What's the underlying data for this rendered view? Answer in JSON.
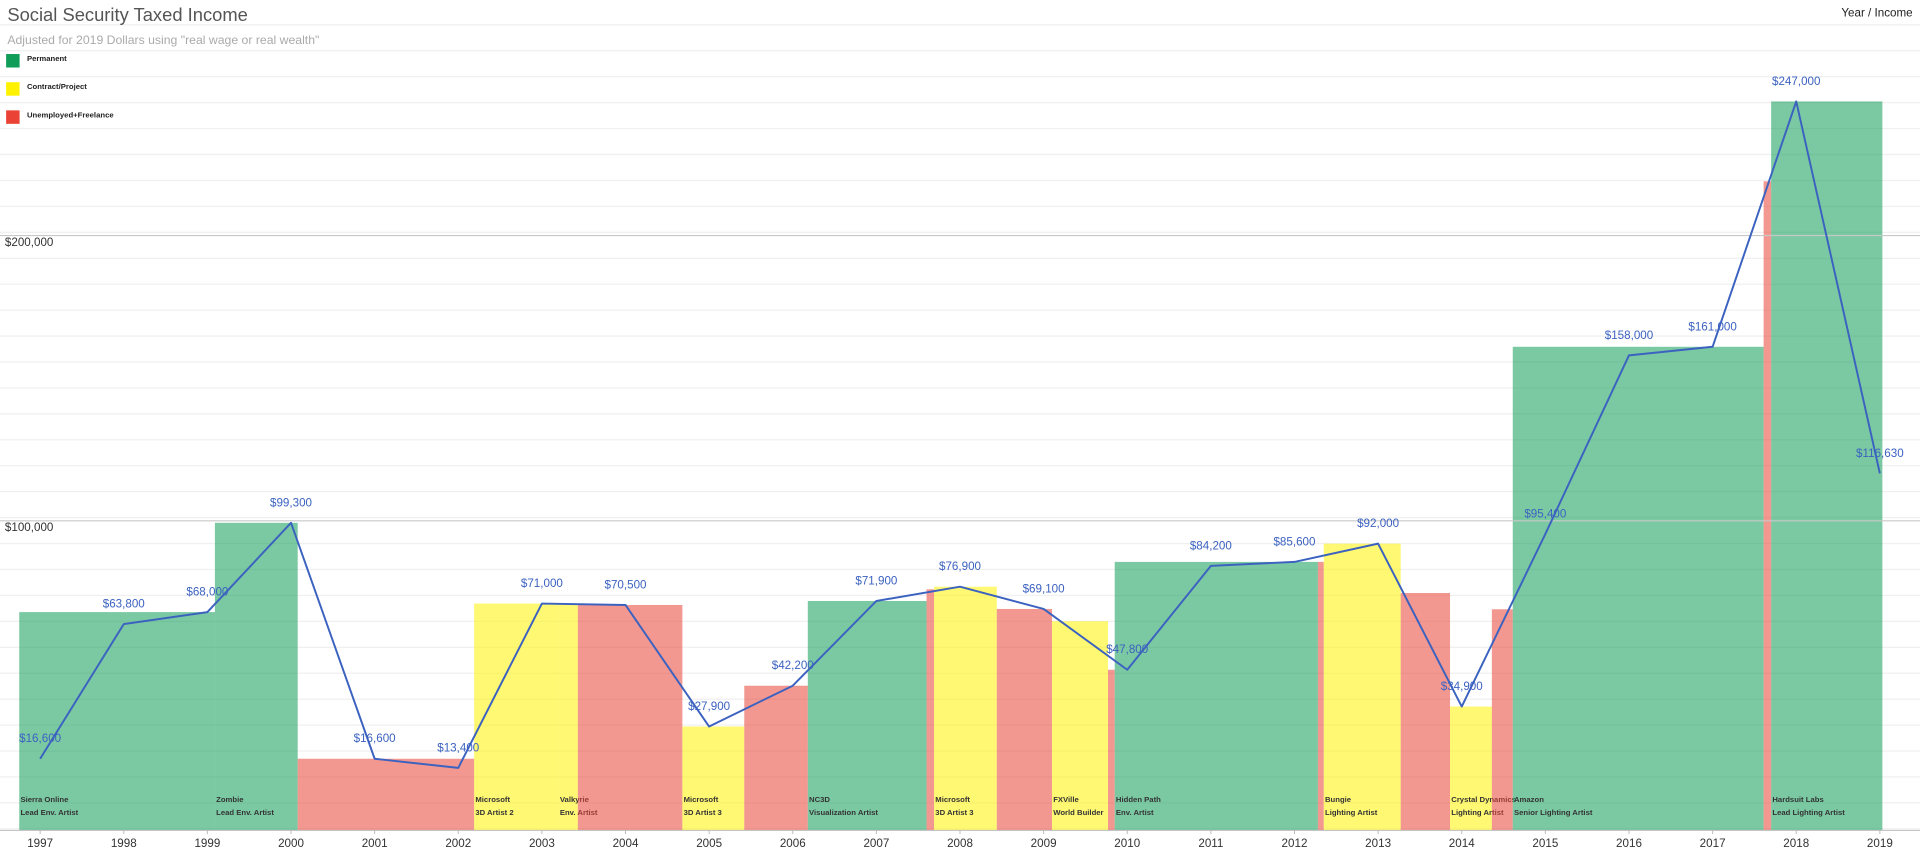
{
  "chart_data": {
    "type": "line",
    "title": "Social Security Taxed Income",
    "subtitle": "Adjusted for 2019 Dollars using \"real wage or real wealth\"",
    "axis_label": "Year / Income",
    "x": [
      1997,
      1998,
      1999,
      2000,
      2001,
      2002,
      2003,
      2004,
      2005,
      2006,
      2007,
      2008,
      2009,
      2010,
      2011,
      2012,
      2013,
      2014,
      2015,
      2016,
      2017,
      2018,
      2019
    ],
    "values": [
      16600,
      63800,
      68000,
      99300,
      16600,
      13400,
      71000,
      70500,
      27900,
      42200,
      71900,
      76900,
      69100,
      47800,
      84200,
      85600,
      92000,
      34900,
      95400,
      158000,
      161000,
      247000,
      116630
    ],
    "value_labels": [
      "$16,600",
      "$63,800",
      "$68,000",
      "$99,300",
      "$16,600",
      "$13,400",
      "$71,000",
      "$70,500",
      "$27,900",
      "$42,200",
      "$71,900",
      "$76,900",
      "$69,100",
      "$47,800",
      "$84,200",
      "$85,600",
      "$92,000",
      "$34,900",
      "$95,400",
      "$158,000",
      "$161,000",
      "$247,000",
      "$116,630"
    ],
    "color": "#3c62c0",
    "xlim": [
      1996.52,
      2019.48
    ],
    "xticks": [
      1997,
      1998,
      1999,
      2000,
      2001,
      2002,
      2003,
      2004,
      2005,
      2006,
      2007,
      2008,
      2009,
      2010,
      2011,
      2012,
      2013,
      2014,
      2015,
      2016,
      2017,
      2018,
      2019
    ],
    "ylim": [
      -8500,
      282500
    ],
    "yticks": [
      {
        "value": 100000,
        "label": "$100,000"
      },
      {
        "value": 200000,
        "label": "$200,000"
      }
    ],
    "grid": true,
    "legend_position": "top-left",
    "legend": [
      {
        "name": "Permanent",
        "color": "#0f9d58"
      },
      {
        "name": "Contract/Project",
        "color": "#fff200"
      },
      {
        "name": "Unemployed+Freelance",
        "color": "#ea4335"
      }
    ],
    "blocks": [
      {
        "kind": 0,
        "start": 1996.75,
        "end": 1999.09,
        "value": 68000,
        "company": "Sierra Online",
        "role": "Lead Env. Artist"
      },
      {
        "kind": 0,
        "start": 1999.09,
        "end": 2000.08,
        "value": 99300,
        "company": "Zombie",
        "role": "Lead Env. Artist"
      },
      {
        "kind": 2,
        "start": 2000.08,
        "end": 2002.19,
        "value": 16600
      },
      {
        "kind": 1,
        "start": 2002.19,
        "end": 2003.2,
        "value": 71000,
        "company": "Microsoft",
        "role": "3D Artist 2"
      },
      {
        "kind": 1,
        "start": 2003.2,
        "end": 2003.43,
        "value": 71000,
        "company": "Valkyrie",
        "role": "Env. Artist"
      },
      {
        "kind": 2,
        "start": 2003.43,
        "end": 2004.68,
        "value": 70500
      },
      {
        "kind": 1,
        "start": 2004.68,
        "end": 2005.42,
        "value": 27900,
        "company": "Microsoft",
        "role": "3D Artist 3"
      },
      {
        "kind": 2,
        "start": 2005.42,
        "end": 2006.18,
        "value": 42200
      },
      {
        "kind": 0,
        "start": 2006.18,
        "end": 2007.6,
        "value": 71900,
        "company": "NC3D",
        "role": "Visualization Artist"
      },
      {
        "kind": 2,
        "start": 2007.6,
        "end": 2007.69,
        "value": 76000
      },
      {
        "kind": 1,
        "start": 2007.69,
        "end": 2008.44,
        "value": 76900,
        "company": "Microsoft",
        "role": "3D Artist 3"
      },
      {
        "kind": 2,
        "start": 2008.44,
        "end": 2009.1,
        "value": 69100
      },
      {
        "kind": 1,
        "start": 2009.1,
        "end": 2009.77,
        "value": 64800,
        "company": "FXVille",
        "role": "World Builder"
      },
      {
        "kind": 2,
        "start": 2009.77,
        "end": 2009.85,
        "value": 47800
      },
      {
        "kind": 0,
        "start": 2009.85,
        "end": 2012.28,
        "value": 85600,
        "company": "Hidden Path",
        "role": "Env. Artist"
      },
      {
        "kind": 2,
        "start": 2012.28,
        "end": 2012.35,
        "value": 85600
      },
      {
        "kind": 1,
        "start": 2012.35,
        "end": 2013.27,
        "value": 92000,
        "company": "Bungie",
        "role": "Lighting Artist"
      },
      {
        "kind": 2,
        "start": 2013.27,
        "end": 2013.86,
        "value": 74700
      },
      {
        "kind": 1,
        "start": 2013.86,
        "end": 2014.36,
        "value": 34900,
        "company": "Crystal Dynamics",
        "role": "Lighting Artist"
      },
      {
        "kind": 2,
        "start": 2014.36,
        "end": 2014.61,
        "value": 69000
      },
      {
        "kind": 0,
        "start": 2014.61,
        "end": 2017.61,
        "value": 161000,
        "company": "Amazon",
        "role": "Senior Lighting Artist"
      },
      {
        "kind": 2,
        "start": 2017.61,
        "end": 2017.7,
        "value": 219000
      },
      {
        "kind": 0,
        "start": 2017.7,
        "end": 2019.03,
        "value": 247000,
        "company": "Hardsuit Labs",
        "role": "Lead Lighting Artist"
      }
    ]
  }
}
